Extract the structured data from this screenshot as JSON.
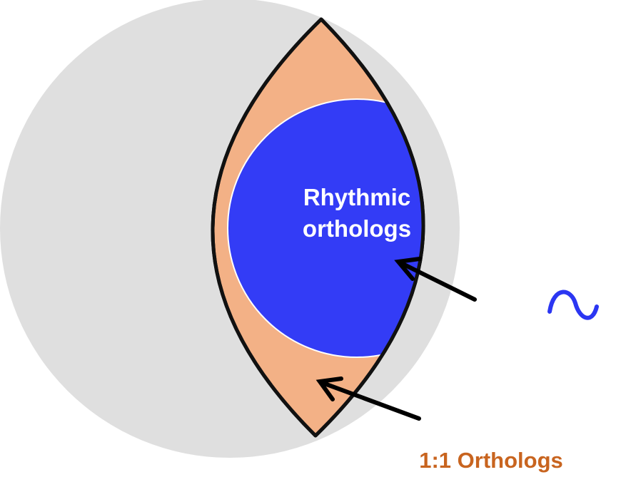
{
  "labels": {
    "rhythmic_line1": "Rhythmic",
    "rhythmic_line2": "orthologs",
    "orthologs": "1:1 Orthologs"
  },
  "colors": {
    "background_circle": "#dfdfdf",
    "lens_fill": "#f3b186",
    "lens_stroke": "#111111",
    "rhythmic_fill": "#333cf6",
    "rhythmic_text": "#ffffff",
    "orthologs_text": "#c8641f",
    "arrow": "#000000",
    "wave": "#2b36f2"
  },
  "icons": {
    "wave": "tilde-wave-icon",
    "arrow_rhythmic": "arrow-icon",
    "arrow_orthologs": "arrow-icon"
  }
}
